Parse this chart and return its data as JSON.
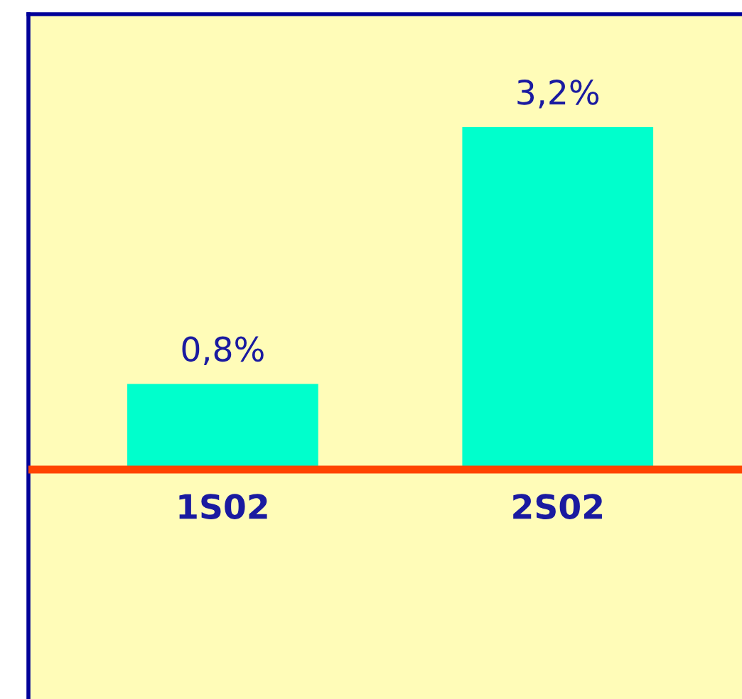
{
  "chart_data": {
    "type": "bar",
    "categories": [
      "1S02",
      "2S02"
    ],
    "values": [
      0.8,
      3.2
    ],
    "value_labels": [
      "0,8%",
      "3,2%"
    ],
    "color": "#00ffcc",
    "grid": false
  }
}
